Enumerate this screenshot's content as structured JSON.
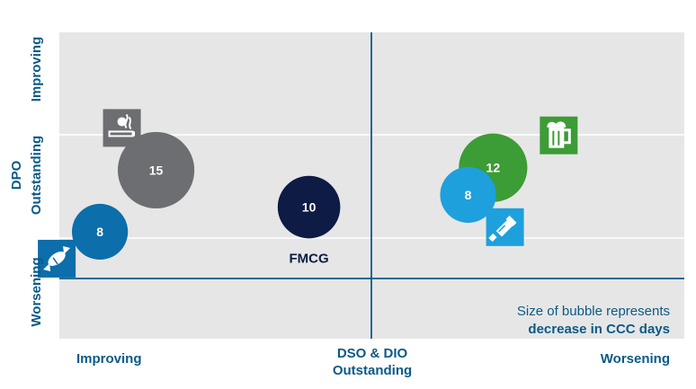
{
  "chart_data": {
    "type": "scatter",
    "subtype": "bubble",
    "x_axis": {
      "left_label": "Improving",
      "center_label_line1": "DSO & DIO",
      "center_label_line2": "Outstanding",
      "right_label": "Worsening"
    },
    "y_axis": {
      "label_line1": "DPO",
      "label_line2": "Outstanding",
      "top_label": "Improving",
      "bottom_label": "Worsening"
    },
    "grid": true,
    "bubbles": [
      {
        "name": "Tobacco",
        "icon": "cigarette-icon",
        "value": 15,
        "value_label": "15",
        "color": "#6d6e71",
        "x": -0.69,
        "y": 0.44
      },
      {
        "name": "FMCG",
        "icon": "",
        "value": 10,
        "value_label": "10",
        "series_label": "FMCG",
        "color": "#0d1b45",
        "x": -0.2,
        "y": 0.29
      },
      {
        "name": "Confectionery",
        "icon": "candy-icon",
        "value": 8,
        "value_label": "8",
        "color": "#0c6eaa",
        "x": -0.87,
        "y": 0.19
      },
      {
        "name": "Beverages",
        "icon": "beer-mug-icon",
        "value": 12,
        "value_label": "12",
        "color": "#3c9c35",
        "x": 0.39,
        "y": 0.45
      },
      {
        "name": "Personal care",
        "icon": "toothpaste-icon",
        "value": 8,
        "value_label": "8",
        "color": "#1ea0dc",
        "x": 0.31,
        "y": 0.34
      }
    ],
    "note": {
      "line1": "Size of bubble represents",
      "line2": "decrease in CCC days"
    },
    "colors": {
      "plot_background": "#e6e6e6",
      "axis": "#0b5a86",
      "grid": "#ffffff"
    }
  }
}
